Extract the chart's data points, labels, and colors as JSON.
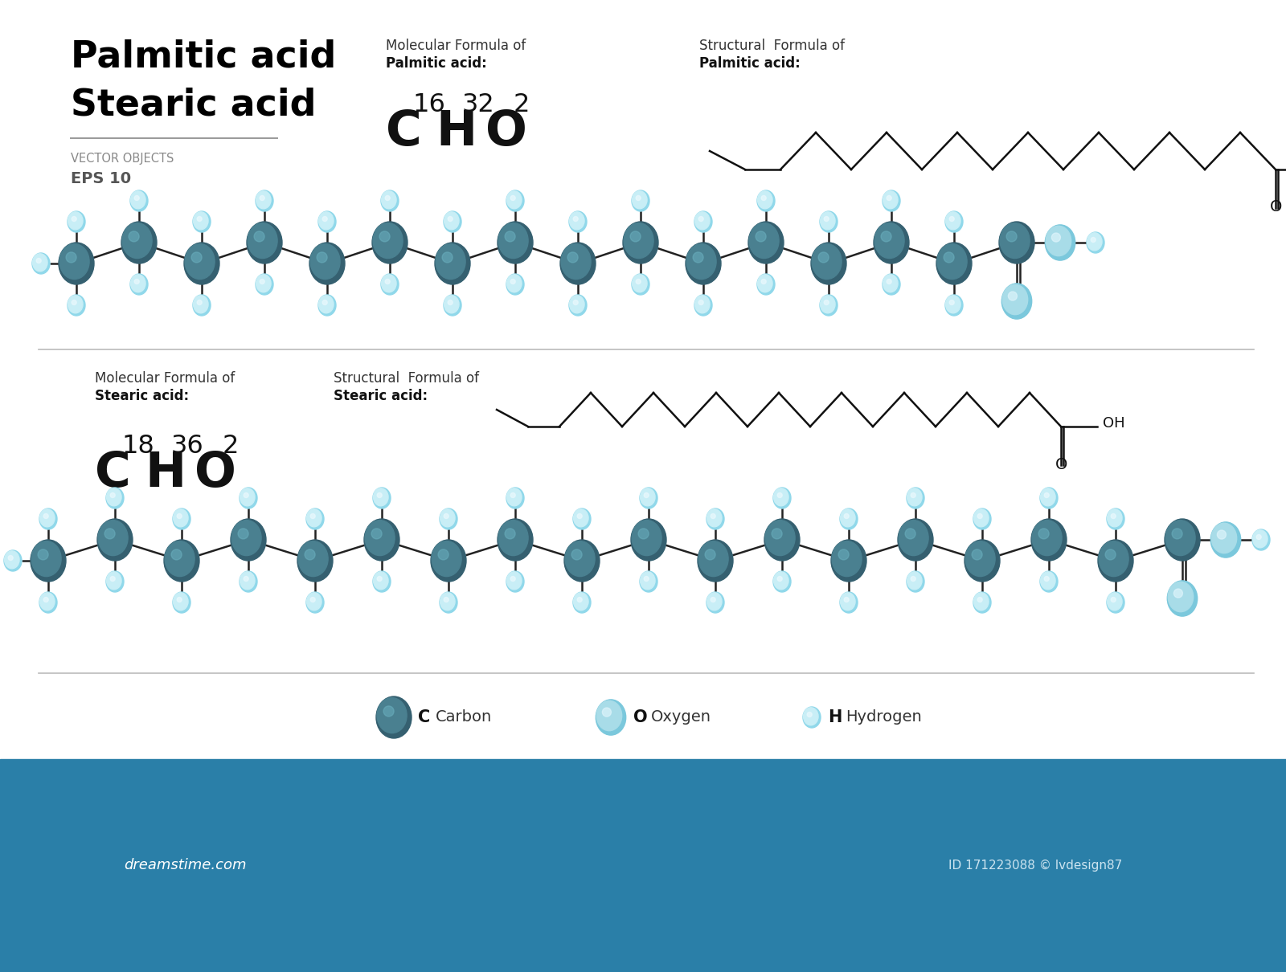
{
  "bg_color": "#ffffff",
  "title_line1": "Palmitic acid",
  "title_line2": "Stearic acid",
  "subtitle1": "VECTOR OBJECTS",
  "subtitle2": "EPS 10",
  "palmitic_mol_label1": "Molecular Formula of",
  "palmitic_mol_label2": "Palmitic acid:",
  "palmitic_struct_label1": "Structural  Formula of",
  "palmitic_struct_label2": "Palmitic acid:",
  "stearic_mol_label1": "Molecular Formula of",
  "stearic_mol_label2": "Stearic acid:",
  "stearic_struct_label1": "Structural  Formula of",
  "stearic_struct_label2": "Stearic acid:",
  "carbon_label": "C",
  "carbon_text": "Carbon",
  "oxygen_label": "O",
  "oxygen_text": "Oxygen",
  "hydrogen_label": "H",
  "hydrogen_text": "Hydrogen",
  "carbon_color": "#4a8090",
  "carbon_color_dark": "#356070",
  "carbon_highlight": "#6aafbe",
  "oxygen_color": "#a8dce8",
  "oxygen_color_dark": "#7bc8dc",
  "oxygen_highlight": "#e0f5fc",
  "hydrogen_color": "#c8eef6",
  "hydrogen_color_dark": "#90d8ea",
  "hydrogen_highlight": "#eaf8fd",
  "bond_color": "#222222",
  "separator_color": "#bbbbbb",
  "title_color": "#000000",
  "footer_bg": "#2a7fa8",
  "footer_text_color": "#ffffff",
  "footer_text": "dreamstime.com",
  "footer_id": "ID 171223088 © lvdesign87"
}
